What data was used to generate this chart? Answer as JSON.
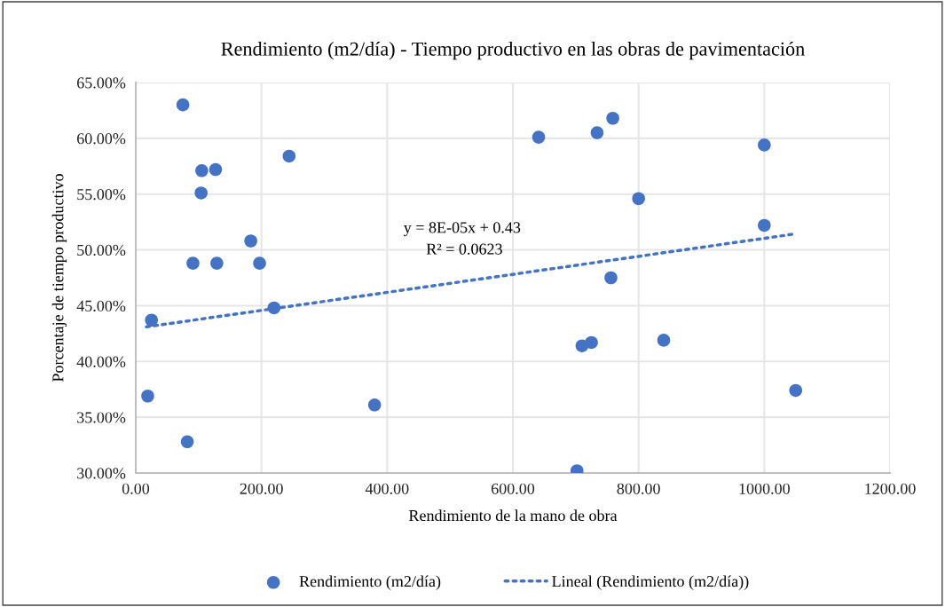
{
  "chart_data": {
    "type": "scatter",
    "title": "Rendimiento (m2/día) - Tiempo productivo en las obras de pavimentación",
    "xlabel": "Rendimiento de la mano de obra",
    "ylabel": "Porcentaje de tiempo productivo",
    "series": [
      {
        "name": "Rendimiento (m2/día)",
        "color": "#4472c4",
        "marker": "circle",
        "x": [
          75,
          105,
          127,
          104,
          244,
          183,
          91,
          129,
          197,
          220,
          25,
          19,
          82,
          380,
          641,
          734,
          759,
          1000,
          800,
          1000,
          756,
          710,
          725,
          840,
          1050,
          702
        ],
        "values": [
          63.0,
          57.1,
          57.2,
          55.1,
          58.4,
          50.8,
          48.8,
          48.8,
          48.8,
          44.8,
          43.7,
          36.9,
          32.8,
          36.1,
          60.1,
          60.5,
          61.8,
          59.4,
          54.6,
          52.2,
          47.5,
          41.4,
          41.7,
          41.9,
          37.4,
          30.2
        ]
      },
      {
        "name": "Lineal (Rendimiento (m2/día))",
        "type": "line",
        "color": "#4472c4",
        "line_style": "dotted",
        "marker": "none",
        "x": [
          17,
          1045
        ],
        "values": [
          43.1,
          51.4
        ]
      }
    ],
    "annotations": [
      "y = 8E-05x + 0.43",
      "R² = 0.0623"
    ],
    "xlim": [
      0,
      1200
    ],
    "xticks": [
      {
        "value": 0,
        "label": "0.00"
      },
      {
        "value": 200,
        "label": "200.00"
      },
      {
        "value": 400,
        "label": "400.00"
      },
      {
        "value": 600,
        "label": "600.00"
      },
      {
        "value": 800,
        "label": "800.00"
      },
      {
        "value": 1000,
        "label": "1000.00"
      },
      {
        "value": 1200,
        "label": "1200.00"
      }
    ],
    "ylim": [
      30,
      65
    ],
    "yticks": [
      {
        "value": 30,
        "label": "30.00%"
      },
      {
        "value": 35,
        "label": "35.00%"
      },
      {
        "value": 40,
        "label": "40.00%"
      },
      {
        "value": 45,
        "label": "45.00%"
      },
      {
        "value": 50,
        "label": "50.00%"
      },
      {
        "value": 55,
        "label": "55.00%"
      },
      {
        "value": 60,
        "label": "60.00%"
      },
      {
        "value": 65,
        "label": "65.00%"
      }
    ],
    "grid": true,
    "legend": "bottom"
  }
}
